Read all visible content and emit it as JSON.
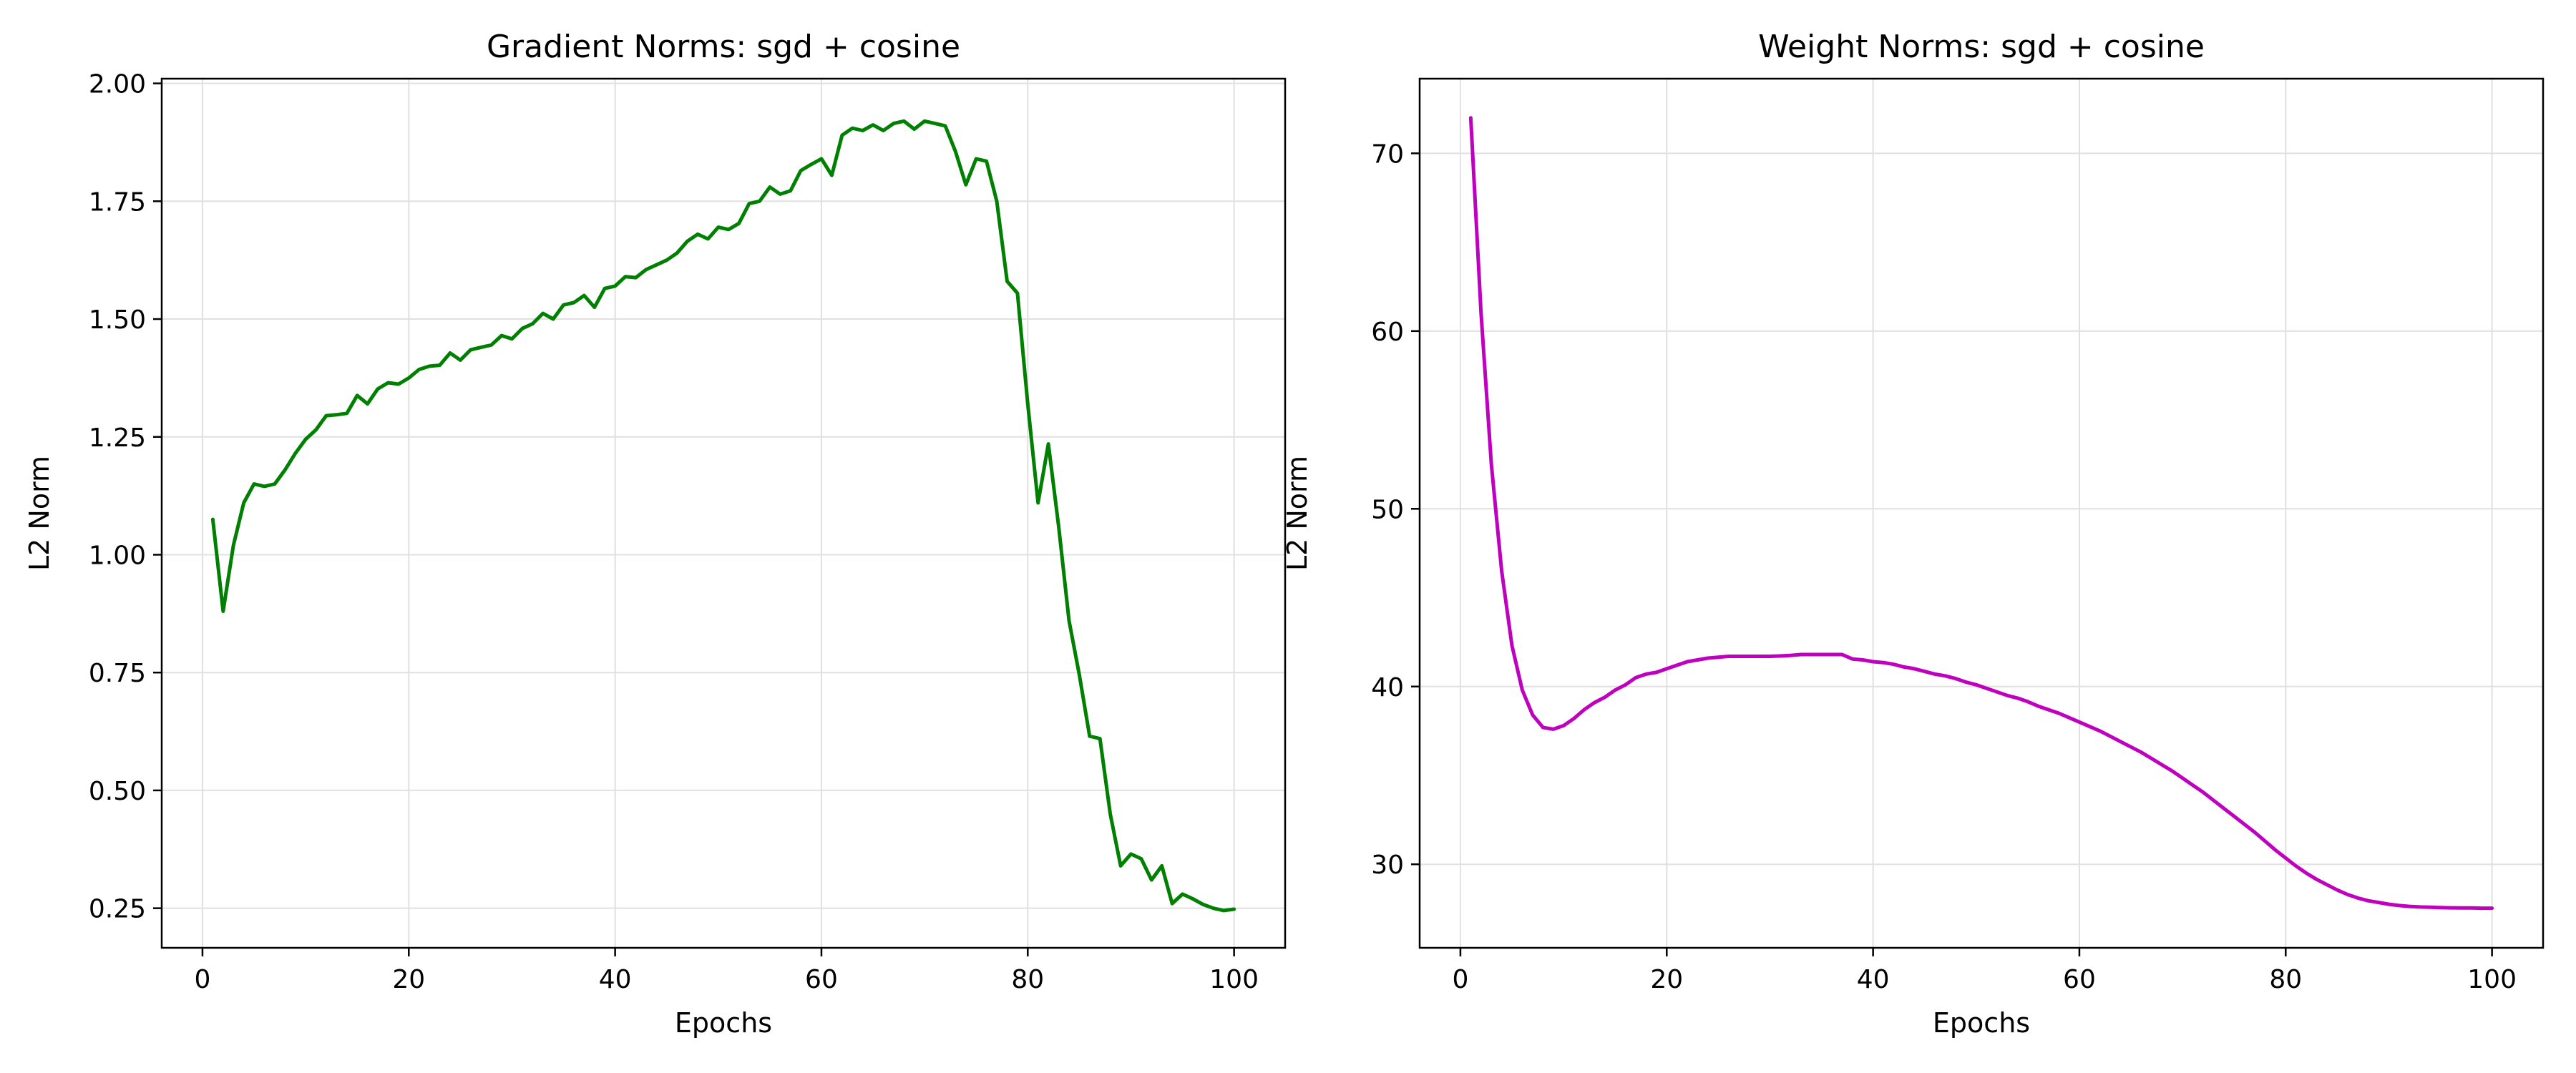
{
  "chart_data": [
    {
      "type": "line",
      "title": "Gradient Norms: sgd + cosine",
      "xlabel": "Epochs",
      "ylabel": "L2 Norm",
      "xlim": [
        -3.95,
        104.95
      ],
      "ylim": [
        0.166,
        2.01
      ],
      "xticks": [
        0,
        20,
        40,
        60,
        80,
        100
      ],
      "xtick_labels": [
        "0",
        "20",
        "40",
        "60",
        "80",
        "100"
      ],
      "yticks": [
        0.25,
        0.5,
        0.75,
        1.0,
        1.25,
        1.5,
        1.75,
        2.0
      ],
      "ytick_labels": [
        "0.25",
        "0.50",
        "0.75",
        "1.00",
        "1.25",
        "1.50",
        "1.75",
        "2.00"
      ],
      "grid": true,
      "legend": "none",
      "color": "#008000",
      "x": [
        1,
        2,
        3,
        4,
        5,
        6,
        7,
        8,
        9,
        10,
        11,
        12,
        13,
        14,
        15,
        16,
        17,
        18,
        19,
        20,
        21,
        22,
        23,
        24,
        25,
        26,
        27,
        28,
        29,
        30,
        31,
        32,
        33,
        34,
        35,
        36,
        37,
        38,
        39,
        40,
        41,
        42,
        43,
        44,
        45,
        46,
        47,
        48,
        49,
        50,
        51,
        52,
        53,
        54,
        55,
        56,
        57,
        58,
        59,
        60,
        61,
        62,
        63,
        64,
        65,
        66,
        67,
        68,
        69,
        70,
        71,
        72,
        73,
        74,
        75,
        76,
        77,
        78,
        79,
        80,
        81,
        82,
        83,
        84,
        85,
        86,
        87,
        88,
        89,
        90,
        91,
        92,
        93,
        94,
        95,
        96,
        97,
        98,
        99,
        100
      ],
      "y": [
        1.075,
        0.88,
        1.02,
        1.11,
        1.15,
        1.145,
        1.15,
        1.18,
        1.215,
        1.245,
        1.265,
        1.295,
        1.297,
        1.3,
        1.338,
        1.32,
        1.352,
        1.365,
        1.362,
        1.375,
        1.393,
        1.4,
        1.402,
        1.428,
        1.413,
        1.435,
        1.44,
        1.445,
        1.465,
        1.458,
        1.48,
        1.49,
        1.512,
        1.5,
        1.53,
        1.535,
        1.55,
        1.525,
        1.565,
        1.57,
        1.59,
        1.588,
        1.605,
        1.615,
        1.625,
        1.64,
        1.665,
        1.68,
        1.67,
        1.695,
        1.69,
        1.703,
        1.745,
        1.75,
        1.78,
        1.765,
        1.772,
        1.815,
        1.828,
        1.84,
        1.805,
        1.89,
        1.905,
        1.9,
        1.912,
        1.9,
        1.915,
        1.92,
        1.903,
        1.92,
        1.915,
        1.91,
        1.855,
        1.785,
        1.84,
        1.835,
        1.75,
        1.58,
        1.555,
        1.32,
        1.11,
        1.235,
        1.06,
        0.86,
        0.745,
        0.615,
        0.61,
        0.45,
        0.34,
        0.365,
        0.355,
        0.31,
        0.34,
        0.26,
        0.28,
        0.27,
        0.258,
        0.25,
        0.245,
        0.248
      ]
    },
    {
      "type": "line",
      "title": "Weight Norms: sgd + cosine",
      "xlabel": "Epochs",
      "ylabel": "L2 Norm",
      "xlim": [
        -3.95,
        104.95
      ],
      "ylim": [
        25.3,
        74.2
      ],
      "xticks": [
        0,
        20,
        40,
        60,
        80,
        100
      ],
      "xtick_labels": [
        "0",
        "20",
        "40",
        "60",
        "80",
        "100"
      ],
      "yticks": [
        30,
        40,
        50,
        60,
        70
      ],
      "ytick_labels": [
        "30",
        "40",
        "50",
        "60",
        "70"
      ],
      "grid": true,
      "legend": "none",
      "color": "#BF00BF",
      "x": [
        1,
        2,
        3,
        4,
        5,
        6,
        7,
        8,
        9,
        10,
        11,
        12,
        13,
        14,
        15,
        16,
        17,
        18,
        19,
        20,
        21,
        22,
        23,
        24,
        25,
        26,
        27,
        28,
        29,
        30,
        31,
        32,
        33,
        34,
        35,
        36,
        37,
        38,
        39,
        40,
        41,
        42,
        43,
        44,
        45,
        46,
        47,
        48,
        49,
        50,
        51,
        52,
        53,
        54,
        55,
        56,
        57,
        58,
        59,
        60,
        61,
        62,
        63,
        64,
        65,
        66,
        67,
        68,
        69,
        70,
        71,
        72,
        73,
        74,
        75,
        76,
        77,
        78,
        79,
        80,
        81,
        82,
        83,
        84,
        85,
        86,
        87,
        88,
        89,
        90,
        91,
        92,
        93,
        94,
        95,
        96,
        97,
        98,
        99,
        100
      ],
      "y": [
        72.0,
        61.0,
        52.5,
        46.5,
        42.3,
        39.8,
        38.4,
        37.7,
        37.6,
        37.8,
        38.2,
        38.7,
        39.1,
        39.4,
        39.8,
        40.1,
        40.5,
        40.7,
        40.8,
        41.0,
        41.2,
        41.4,
        41.5,
        41.6,
        41.65,
        41.7,
        41.7,
        41.7,
        41.7,
        41.7,
        41.72,
        41.75,
        41.8,
        41.8,
        41.8,
        41.8,
        41.8,
        41.55,
        41.5,
        41.4,
        41.35,
        41.25,
        41.1,
        41.0,
        40.85,
        40.7,
        40.6,
        40.45,
        40.25,
        40.1,
        39.9,
        39.7,
        39.5,
        39.35,
        39.15,
        38.9,
        38.7,
        38.5,
        38.25,
        38.0,
        37.75,
        37.5,
        37.2,
        36.9,
        36.6,
        36.3,
        35.95,
        35.6,
        35.25,
        34.85,
        34.45,
        34.05,
        33.6,
        33.15,
        32.7,
        32.25,
        31.8,
        31.3,
        30.8,
        30.35,
        29.9,
        29.5,
        29.15,
        28.85,
        28.55,
        28.3,
        28.1,
        27.95,
        27.85,
        27.75,
        27.68,
        27.63,
        27.6,
        27.58,
        27.56,
        27.55,
        27.54,
        27.54,
        27.53,
        27.53
      ]
    }
  ]
}
